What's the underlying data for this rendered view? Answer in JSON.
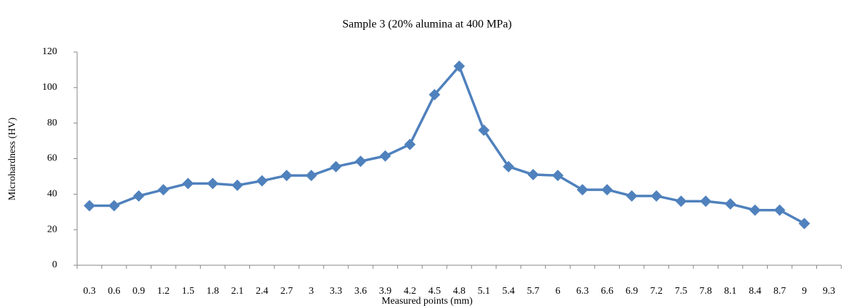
{
  "chart_data": {
    "type": "line",
    "title": "Sample 3 (20% alumina at 400 MPa)",
    "x_label": "Measured points (mm)",
    "y_label": "Microhardness  (HV)",
    "categories": [
      "0.3",
      "0.6",
      "0.9",
      "1.2",
      "1.5",
      "1.8",
      "2.1",
      "2.4",
      "2.7",
      "3",
      "3.3",
      "3.6",
      "3.9",
      "4.2",
      "4.5",
      "4.8",
      "5.1",
      "5.4",
      "5.7",
      "6",
      "6.3",
      "6.6",
      "6.9",
      "7.2",
      "7.5",
      "7.8",
      "8.1",
      "8.4",
      "8.7",
      "9",
      "9.3"
    ],
    "series": [
      {
        "name": "Sample 3",
        "color": "#4f81bd",
        "values": [
          33.5,
          33.5,
          39,
          42.5,
          46,
          46,
          45,
          47.5,
          50.5,
          50.5,
          55.5,
          58.5,
          61.5,
          68,
          96,
          112,
          76,
          55.5,
          51,
          50.5,
          42.5,
          42.5,
          39,
          39,
          36,
          36,
          34.5,
          31,
          31,
          23.5,
          null
        ]
      }
    ],
    "ylim": [
      0,
      120
    ],
    "yticks": [
      0,
      20,
      40,
      60,
      80,
      100,
      120
    ],
    "grid": false
  }
}
